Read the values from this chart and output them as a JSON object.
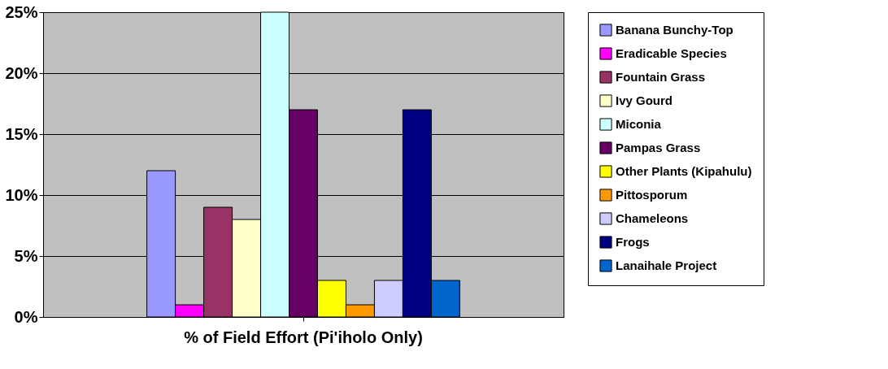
{
  "chart_data": {
    "type": "bar",
    "categories": [
      "% of Field Effort  (Pi'iholo Only)"
    ],
    "series": [
      {
        "name": "Banana Bunchy-Top",
        "color": "#9999ff",
        "values": [
          12
        ]
      },
      {
        "name": "Eradicable Species",
        "color": "#ff00ff",
        "values": [
          1
        ]
      },
      {
        "name": "Fountain Grass",
        "color": "#993366",
        "values": [
          9
        ]
      },
      {
        "name": "Ivy Gourd",
        "color": "#ffffcc",
        "values": [
          8
        ]
      },
      {
        "name": "Miconia",
        "color": "#ccffff",
        "values": [
          25
        ]
      },
      {
        "name": "Pampas Grass",
        "color": "#660066",
        "values": [
          17
        ]
      },
      {
        "name": "Other Plants (Kipahulu)",
        "color": "#ffff00",
        "values": [
          3
        ]
      },
      {
        "name": "Pittosporum",
        "color": "#ff9900",
        "values": [
          1
        ]
      },
      {
        "name": "Chameleons",
        "color": "#ccccff",
        "values": [
          3
        ]
      },
      {
        "name": "Frogs",
        "color": "#000080",
        "values": [
          17
        ]
      },
      {
        "name": "Lanaihale Project",
        "color": "#0066cc",
        "values": [
          3
        ]
      }
    ],
    "ylim": [
      0,
      25
    ],
    "yticks": [
      {
        "value": 0,
        "label": "0%"
      },
      {
        "value": 5,
        "label": "5%"
      },
      {
        "value": 10,
        "label": "10%"
      },
      {
        "value": 15,
        "label": "15%"
      },
      {
        "value": 20,
        "label": "20%"
      },
      {
        "value": 25,
        "label": "25%"
      }
    ],
    "grid": "y",
    "legend": "right"
  }
}
